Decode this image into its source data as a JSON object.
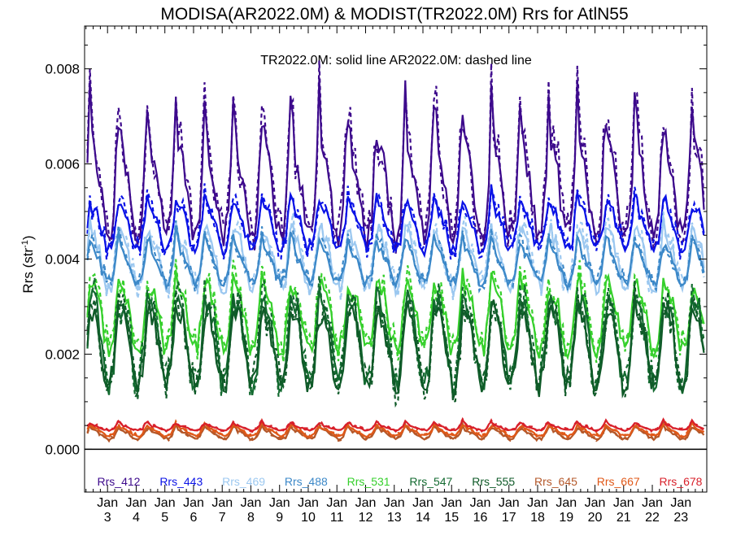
{
  "chart_data": {
    "type": "line",
    "title": "MODISA(AR2022.0M) & MODIST(TR2022.0M)  Rrs for AtlN55",
    "annotation": "TR2022.0M: solid line   AR2022.0M: dashed line",
    "ylabel_main": "Rrs (str",
    "ylabel_sup": "-1",
    "ylabel_close": ")",
    "xlabel": "",
    "xlim": [
      2.2,
      23.9
    ],
    "ylim": [
      -0.0009,
      0.0089
    ],
    "yticks": [
      {
        "value": 0.0,
        "label": "0.000"
      },
      {
        "value": 0.002,
        "label": "0.002"
      },
      {
        "value": 0.004,
        "label": "0.004"
      },
      {
        "value": 0.006,
        "label": "0.006"
      },
      {
        "value": 0.008,
        "label": "0.008"
      }
    ],
    "xticks": [
      {
        "value": 3,
        "month": "Jan",
        "year": "3"
      },
      {
        "value": 4,
        "month": "Jan",
        "year": "4"
      },
      {
        "value": 5,
        "month": "Jan",
        "year": "5"
      },
      {
        "value": 6,
        "month": "Jan",
        "year": "6"
      },
      {
        "value": 7,
        "month": "Jan",
        "year": "7"
      },
      {
        "value": 8,
        "month": "Jan",
        "year": "8"
      },
      {
        "value": 9,
        "month": "Jan",
        "year": "9"
      },
      {
        "value": 10,
        "month": "Jan",
        "year": "10"
      },
      {
        "value": 11,
        "month": "Jan",
        "year": "11"
      },
      {
        "value": 12,
        "month": "Jan",
        "year": "12"
      },
      {
        "value": 13,
        "month": "Jan",
        "year": "13"
      },
      {
        "value": 14,
        "month": "Jan",
        "year": "14"
      },
      {
        "value": 15,
        "month": "Jan",
        "year": "15"
      },
      {
        "value": 16,
        "month": "Jan",
        "year": "16"
      },
      {
        "value": 17,
        "month": "Jan",
        "year": "17"
      },
      {
        "value": 18,
        "month": "Jan",
        "year": "18"
      },
      {
        "value": 19,
        "month": "Jan",
        "year": "19"
      },
      {
        "value": 20,
        "month": "Jan",
        "year": "20"
      },
      {
        "value": 21,
        "month": "Jan",
        "year": "21"
      },
      {
        "value": 22,
        "month": "Jan",
        "year": "22"
      },
      {
        "value": 23,
        "month": "Jan",
        "year": "23"
      }
    ],
    "zero_line": 0.0,
    "legend_placement": "bottom inside",
    "series": [
      {
        "name": "Rrs_412",
        "color": "#3d0a8c",
        "winter": 0.0045,
        "summer": 0.0061,
        "peak": 0.0075
      },
      {
        "name": "Rrs_443",
        "color": "#0a12e6",
        "winter": 0.0042,
        "summer": 0.005,
        "peak": 0.0055
      },
      {
        "name": "Rrs_469",
        "color": "#9cc8f0",
        "winter": 0.0034,
        "summer": 0.0044,
        "peak": 0.0049
      },
      {
        "name": "Rrs_488",
        "color": "#3c88c8",
        "winter": 0.0035,
        "summer": 0.0041,
        "peak": 0.0046
      },
      {
        "name": "Rrs_531",
        "color": "#36d02c",
        "winter": 0.0021,
        "summer": 0.0033,
        "peak": 0.0038
      },
      {
        "name": "Rrs_547",
        "color": "#136a30",
        "winter": 0.0014,
        "summer": 0.003,
        "peak": 0.0034
      },
      {
        "name": "Rrs_555",
        "color": "#0f5a28",
        "winter": 0.0013,
        "summer": 0.0028,
        "peak": 0.0033
      },
      {
        "name": "Rrs_645",
        "color": "#b4582a",
        "winter": 0.00022,
        "summer": 0.00038,
        "peak": 0.0005
      },
      {
        "name": "Rrs_667",
        "color": "#e05818",
        "winter": 0.00028,
        "summer": 0.00043,
        "peak": 0.00055
      },
      {
        "name": "Rrs_678",
        "color": "#d8202a",
        "winter": 0.0004,
        "summer": 0.00048,
        "peak": 0.0006
      }
    ]
  }
}
